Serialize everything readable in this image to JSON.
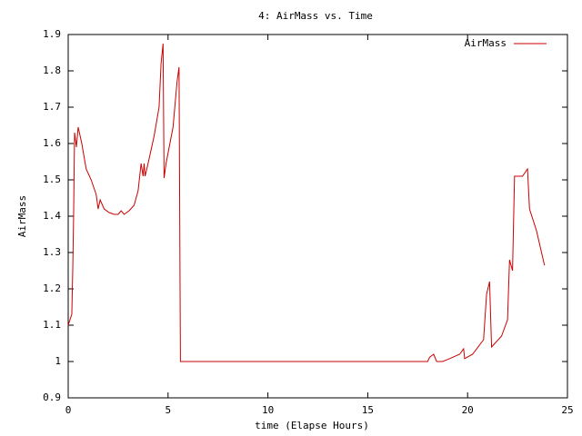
{
  "chart_data": {
    "type": "line",
    "title": "4: AirMass vs. Time",
    "x_label": "time (Elapse Hours)",
    "y_label": "AirMass",
    "legend": "top-right",
    "xlim": [
      0,
      25
    ],
    "xticks": [
      0,
      5,
      10,
      15,
      20,
      25
    ],
    "ylim": [
      0.9,
      1.9
    ],
    "yticks": [
      0.9,
      1,
      1.1,
      1.2,
      1.3,
      1.4,
      1.5,
      1.6,
      1.7,
      1.8,
      1.9
    ],
    "series": [
      {
        "name": "AirMass",
        "color": "#cc0000",
        "x": [
          0,
          0.18,
          0.23,
          0.27,
          0.32,
          0.41,
          0.5,
          0.68,
          0.9,
          1.15,
          1.4,
          1.5,
          1.6,
          1.8,
          2.05,
          2.3,
          2.5,
          2.65,
          2.8,
          3.05,
          3.3,
          3.5,
          3.65,
          3.75,
          3.8,
          3.85,
          4.0,
          4.3,
          4.55,
          4.65,
          4.75,
          4.8,
          4.9,
          5.25,
          5.45,
          5.55,
          5.6,
          5.62,
          18.0,
          18.1,
          18.3,
          18.45,
          18.75,
          19.1,
          19.6,
          19.8,
          19.85,
          20.25,
          20.8,
          20.95,
          21.1,
          21.2,
          21.7,
          22.0,
          22.1,
          22.25,
          22.35,
          22.75,
          23.0,
          23.1,
          23.45,
          23.85
        ],
        "values": [
          1.1,
          1.13,
          1.26,
          1.4,
          1.63,
          1.59,
          1.645,
          1.6,
          1.53,
          1.5,
          1.46,
          1.42,
          1.445,
          1.42,
          1.41,
          1.405,
          1.405,
          1.415,
          1.405,
          1.415,
          1.43,
          1.47,
          1.545,
          1.51,
          1.545,
          1.51,
          1.545,
          1.62,
          1.7,
          1.82,
          1.875,
          1.505,
          1.545,
          1.645,
          1.77,
          1.81,
          1.21,
          1.0,
          1.0,
          1.012,
          1.02,
          1.0,
          1.0,
          1.008,
          1.02,
          1.035,
          1.008,
          1.02,
          1.06,
          1.185,
          1.22,
          1.04,
          1.07,
          1.115,
          1.28,
          1.25,
          1.51,
          1.51,
          1.53,
          1.42,
          1.36,
          1.265
        ]
      }
    ]
  }
}
